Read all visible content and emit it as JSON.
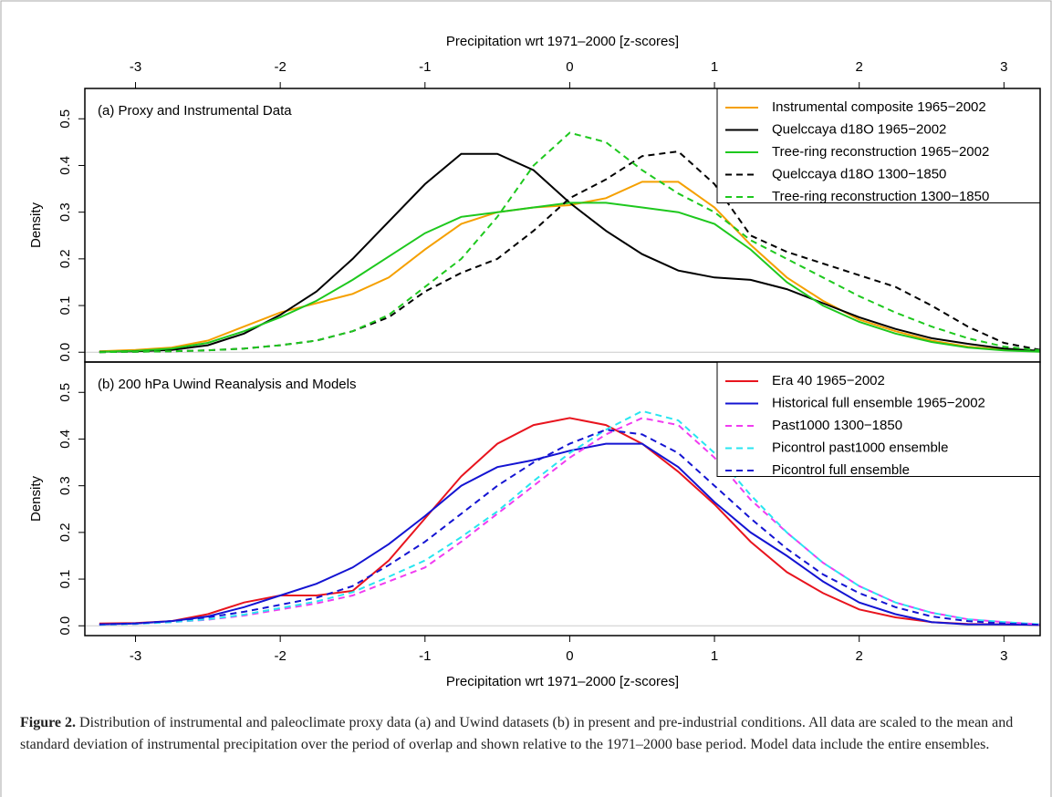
{
  "chart_data": [
    {
      "type": "line",
      "label": "(a) Proxy and Instrumental Data",
      "ylabel": "Density",
      "xlabel": "Precipitation wrt 1971–2000 [z-scores]",
      "xaxis_position": "top",
      "xlim": [
        -3.35,
        3.25
      ],
      "xticks": [
        -3,
        -2,
        -1,
        0,
        1,
        2,
        3
      ],
      "ylim": [
        -0.021,
        0.565
      ],
      "yticks": [
        {
          "value": 0,
          "label": "0.0"
        },
        0.1,
        0.2,
        0.3,
        0.4,
        0.5
      ],
      "zero_line": true,
      "legend": "top-right",
      "x": [
        -3.25,
        -3,
        -2.75,
        -2.5,
        -2.25,
        -2,
        -1.75,
        -1.5,
        -1.25,
        -1,
        -0.75,
        -0.5,
        -0.25,
        0,
        0.25,
        0.5,
        0.75,
        1,
        1.25,
        1.5,
        1.75,
        2,
        2.25,
        2.5,
        2.75,
        3,
        3.25
      ],
      "series": [
        {
          "name": "Instrumental composite 1965−2002",
          "color": "#f5a000",
          "dashed": false,
          "values": [
            0.002,
            0.005,
            0.01,
            0.025,
            0.055,
            0.085,
            0.105,
            0.125,
            0.16,
            0.22,
            0.275,
            0.3,
            0.31,
            0.315,
            0.33,
            0.365,
            0.365,
            0.31,
            0.23,
            0.16,
            0.11,
            0.07,
            0.045,
            0.025,
            0.012,
            0.005,
            0.002
          ]
        },
        {
          "name": "Quelccaya d18O 1965−2002",
          "color": "#000000",
          "dashed": false,
          "values": [
            0.001,
            0.002,
            0.005,
            0.015,
            0.04,
            0.08,
            0.13,
            0.2,
            0.28,
            0.36,
            0.425,
            0.425,
            0.39,
            0.32,
            0.26,
            0.21,
            0.175,
            0.16,
            0.155,
            0.135,
            0.105,
            0.075,
            0.05,
            0.03,
            0.018,
            0.008,
            0.003
          ]
        },
        {
          "name": "Tree-ring reconstruction 1965−2002",
          "color": "#1ec81e",
          "dashed": false,
          "values": [
            0.001,
            0.003,
            0.008,
            0.02,
            0.045,
            0.075,
            0.11,
            0.155,
            0.205,
            0.255,
            0.29,
            0.3,
            0.31,
            0.32,
            0.32,
            0.31,
            0.3,
            0.275,
            0.22,
            0.15,
            0.1,
            0.065,
            0.04,
            0.022,
            0.01,
            0.004,
            0.001
          ]
        },
        {
          "name": "Quelccaya d18O 1300−1850",
          "color": "#000000",
          "dashed": true,
          "values": [
            0,
            0.001,
            0.002,
            0.004,
            0.008,
            0.015,
            0.025,
            0.045,
            0.075,
            0.13,
            0.17,
            0.2,
            0.26,
            0.33,
            0.37,
            0.42,
            0.43,
            0.36,
            0.25,
            0.215,
            0.19,
            0.165,
            0.14,
            0.1,
            0.055,
            0.02,
            0.005
          ]
        },
        {
          "name": "Tree-ring reconstruction 1300−1850",
          "color": "#1ec81e",
          "dashed": true,
          "values": [
            0,
            0.001,
            0.002,
            0.004,
            0.008,
            0.015,
            0.025,
            0.045,
            0.08,
            0.14,
            0.2,
            0.29,
            0.4,
            0.47,
            0.45,
            0.39,
            0.34,
            0.3,
            0.24,
            0.2,
            0.16,
            0.12,
            0.085,
            0.055,
            0.03,
            0.012,
            0.004
          ]
        }
      ]
    },
    {
      "type": "line",
      "label": "(b) 200 hPa Uwind Reanalysis and Models",
      "ylabel": "Density",
      "xlabel": "Precipitation wrt 1971–2000 [z-scores]",
      "xaxis_position": "bottom",
      "xlim": [
        -3.35,
        3.25
      ],
      "xticks": [
        -3,
        -2,
        -1,
        0,
        1,
        2,
        3
      ],
      "ylim": [
        -0.021,
        0.565
      ],
      "yticks": [
        {
          "value": 0,
          "label": "0.0"
        },
        0.1,
        0.2,
        0.3,
        0.4,
        0.5
      ],
      "zero_line": true,
      "legend": "top-right",
      "x": [
        -3.25,
        -3,
        -2.75,
        -2.5,
        -2.25,
        -2,
        -1.75,
        -1.5,
        -1.25,
        -1,
        -0.75,
        -0.5,
        -0.25,
        0,
        0.25,
        0.5,
        0.75,
        1,
        1.25,
        1.5,
        1.75,
        2,
        2.25,
        2.5,
        2.75,
        3,
        3.25
      ],
      "series": [
        {
          "name": "Era 40 1965−2002",
          "color": "#e8141e",
          "dashed": false,
          "values": [
            0.005,
            0.006,
            0.01,
            0.025,
            0.05,
            0.065,
            0.065,
            0.075,
            0.14,
            0.23,
            0.32,
            0.39,
            0.43,
            0.445,
            0.43,
            0.39,
            0.33,
            0.26,
            0.18,
            0.115,
            0.07,
            0.035,
            0.018,
            0.008,
            0.004,
            0.003,
            0.002
          ]
        },
        {
          "name": "Historical full ensemble 1965−2002",
          "color": "#1414d2",
          "dashed": false,
          "values": [
            0.003,
            0.005,
            0.01,
            0.02,
            0.04,
            0.065,
            0.09,
            0.125,
            0.175,
            0.235,
            0.3,
            0.34,
            0.355,
            0.375,
            0.39,
            0.39,
            0.34,
            0.265,
            0.2,
            0.15,
            0.095,
            0.05,
            0.025,
            0.008,
            0.003,
            0.003,
            0.002
          ]
        },
        {
          "name": "Past1000 1300−1850",
          "color": "#f03cf0",
          "dashed": true,
          "values": [
            0.002,
            0.004,
            0.008,
            0.013,
            0.022,
            0.035,
            0.048,
            0.065,
            0.095,
            0.125,
            0.18,
            0.24,
            0.3,
            0.36,
            0.41,
            0.445,
            0.43,
            0.36,
            0.27,
            0.2,
            0.135,
            0.085,
            0.05,
            0.028,
            0.014,
            0.008,
            0.003
          ]
        },
        {
          "name": "Picontrol past1000 ensemble",
          "color": "#28e6f0",
          "dashed": true,
          "values": [
            0.002,
            0.004,
            0.008,
            0.014,
            0.024,
            0.038,
            0.052,
            0.072,
            0.105,
            0.14,
            0.19,
            0.245,
            0.31,
            0.37,
            0.42,
            0.46,
            0.44,
            0.37,
            0.28,
            0.2,
            0.135,
            0.085,
            0.05,
            0.028,
            0.014,
            0.008,
            0.003
          ]
        },
        {
          "name": "Picontrol full ensemble",
          "color": "#1414d2",
          "dashed": true,
          "values": [
            0.003,
            0.005,
            0.01,
            0.018,
            0.03,
            0.045,
            0.06,
            0.085,
            0.13,
            0.18,
            0.24,
            0.3,
            0.35,
            0.39,
            0.42,
            0.41,
            0.37,
            0.3,
            0.23,
            0.165,
            0.11,
            0.07,
            0.04,
            0.02,
            0.01,
            0.005,
            0.002
          ]
        }
      ]
    }
  ],
  "caption": {
    "label": "Figure 2.",
    "text": "Distribution of instrumental and paleoclimate proxy data (a) and Uwind datasets (b) in present and pre-industrial conditions. All data are scaled to the mean and standard deviation of instrumental precipitation over the period of overlap and shown relative to the 1971–2000 base period. Model data include the entire ensembles."
  }
}
